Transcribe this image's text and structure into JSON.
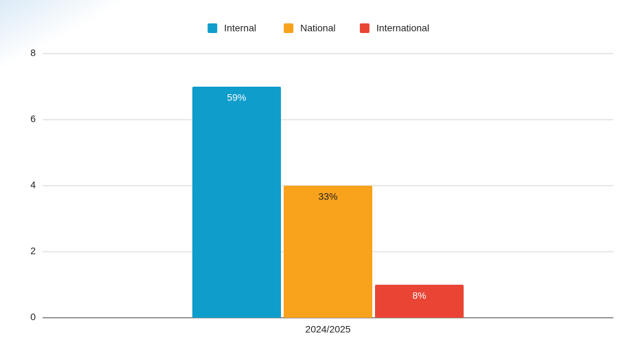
{
  "chart_data": {
    "type": "bar",
    "categories": [
      "2024/2025"
    ],
    "series": [
      {
        "name": "Internal",
        "color": "#0f9dcb",
        "values": [
          7
        ],
        "labels": [
          "59%"
        ]
      },
      {
        "name": "National",
        "color": "#f9a21b",
        "values": [
          4
        ],
        "labels": [
          "33%"
        ]
      },
      {
        "name": "International",
        "color": "#e94434",
        "values": [
          1
        ],
        "labels": [
          "8%"
        ]
      }
    ],
    "ylim": [
      0,
      8
    ],
    "yticks": [
      0,
      2,
      4,
      6,
      8
    ],
    "grid": true,
    "legend": "top"
  }
}
